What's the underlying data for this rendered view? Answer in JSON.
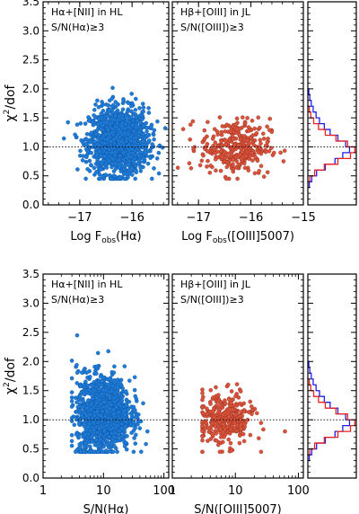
{
  "chart_data": [
    {
      "type": "scatter",
      "panel": "top-left",
      "annotation": [
        "Hα+[NII] in HL",
        "S/N(Hα)≥3"
      ],
      "xlabel": "Log F_obs(Hα)",
      "ylabel": "χ²/dof",
      "xlim": [
        -17.7,
        -15.3
      ],
      "ylim": [
        0.0,
        3.5
      ],
      "xticks": [
        -17,
        -16
      ],
      "yticks": [
        0.0,
        0.5,
        1.0,
        1.5,
        2.0,
        2.5,
        3.0,
        3.5
      ],
      "x_scale": "linear",
      "reference_line_y": 1.0,
      "series": [
        {
          "color": "#1e7bd6",
          "n_points": 1400,
          "x_center": -16.25,
          "x_sd": 0.28,
          "y_center": 1.1,
          "y_sd": 0.28
        }
      ]
    },
    {
      "type": "scatter",
      "panel": "top-middle",
      "annotation": [
        "Hβ+[OIII] in JL",
        "S/N([OIII])≥3"
      ],
      "xlabel": "Log F_obs([OIII]5007)",
      "xlim": [
        -17.5,
        -15.0
      ],
      "ylim": [
        0.0,
        3.5
      ],
      "xticks": [
        -17,
        -16,
        -15
      ],
      "x_scale": "linear",
      "reference_line_y": 1.0,
      "series": [
        {
          "color": "#d9533b",
          "n_points": 330,
          "x_center": -16.3,
          "x_sd": 0.33,
          "y_center": 1.0,
          "y_sd": 0.24
        }
      ]
    },
    {
      "type": "histogram",
      "panel": "top-right",
      "ylim": [
        0.0,
        3.5
      ],
      "reference_line_y": 1.0,
      "series": [
        {
          "color": "#1f1fe8"
        },
        {
          "color": "#e8221f"
        }
      ]
    },
    {
      "type": "scatter",
      "panel": "bottom-left",
      "annotation": [
        "Hα+[NII] in HL",
        "S/N(Hα)≥3"
      ],
      "xlabel": "S/N(Hα)",
      "ylabel": "χ²/dof",
      "x_scale": "log",
      "xlim": [
        1,
        120
      ],
      "ylim": [
        0.0,
        3.5
      ],
      "xticks": [
        1,
        10,
        100
      ],
      "yticks": [
        0.0,
        0.5,
        1.0,
        1.5,
        2.0,
        2.5,
        3.0,
        3.5
      ],
      "reference_line_y": 1.0,
      "series": [
        {
          "color": "#1e7bd6",
          "n_points": 1400,
          "x_center": 10,
          "y_center": 1.1,
          "y_sd": 0.3
        }
      ]
    },
    {
      "type": "scatter",
      "panel": "bottom-middle",
      "annotation": [
        "Hβ+[OIII] in JL",
        "S/N([OIII])≥3"
      ],
      "xlabel": "S/N([OIII]5007)",
      "x_scale": "log",
      "xlim": [
        1,
        120
      ],
      "ylim": [
        0.0,
        3.5
      ],
      "xticks": [
        1,
        10,
        100
      ],
      "reference_line_y": 1.0,
      "series": [
        {
          "color": "#d9533b",
          "n_points": 330,
          "x_center": 7,
          "y_center": 1.0,
          "y_sd": 0.22
        }
      ]
    },
    {
      "type": "histogram",
      "panel": "bottom-right",
      "ylim": [
        0.0,
        3.5
      ],
      "reference_line_y": 1.0,
      "series": [
        {
          "color": "#1f1fe8"
        },
        {
          "color": "#e8221f"
        }
      ]
    }
  ]
}
